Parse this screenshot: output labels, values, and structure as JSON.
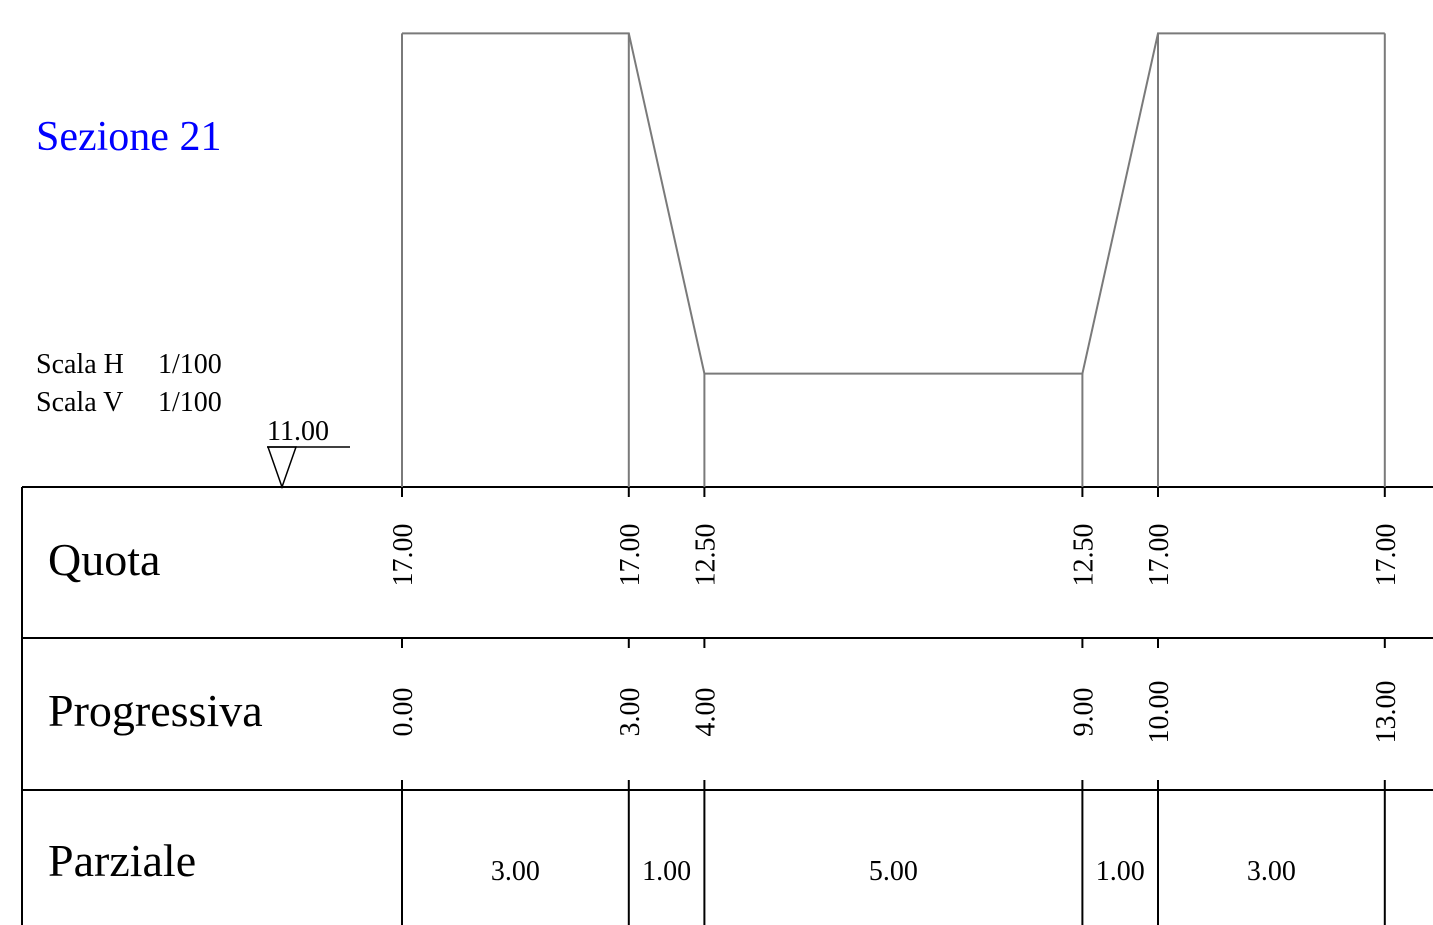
{
  "title": "Sezione 21",
  "scale": {
    "h_label": "Scala H",
    "h_value": "1/100",
    "v_label": "Scala V",
    "v_value": "1/100"
  },
  "datum": {
    "value": 11.0,
    "label": "11.00"
  },
  "rows": {
    "quota": "Quota",
    "progressiva": "Progressiva",
    "parziale": "Parziale"
  },
  "profile": [
    {
      "prog": 0.0,
      "quota": 17.0,
      "prog_label": "0.00",
      "quota_label": "17.00"
    },
    {
      "prog": 3.0,
      "quota": 17.0,
      "prog_label": "3.00",
      "quota_label": "17.00"
    },
    {
      "prog": 4.0,
      "quota": 12.5,
      "prog_label": "4.00",
      "quota_label": "12.50"
    },
    {
      "prog": 9.0,
      "quota": 12.5,
      "prog_label": "9.00",
      "quota_label": "12.50"
    },
    {
      "prog": 10.0,
      "quota": 17.0,
      "prog_label": "10.00",
      "quota_label": "17.00"
    },
    {
      "prog": 13.0,
      "quota": 17.0,
      "prog_label": "13.00",
      "quota_label": "17.00"
    }
  ],
  "partials": [
    "3.00",
    "1.00",
    "5.00",
    "1.00",
    "3.00"
  ],
  "colors": {
    "title": "#0000ff",
    "profile": "#7a7a7a",
    "grid": "#000000",
    "text": "#000000"
  }
}
